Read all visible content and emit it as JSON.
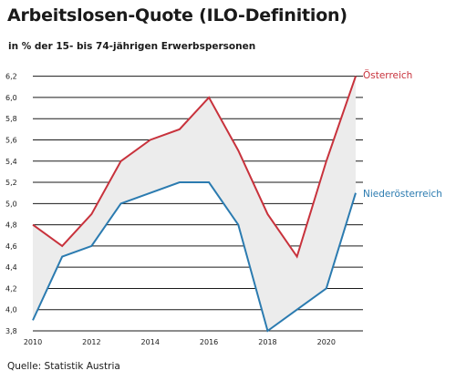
{
  "chart_data": {
    "type": "line",
    "title": "Arbeitslosen-Quote (ILO-Definition)",
    "subtitle": "in % der 15- bis 74-jährigen Erwerbspersonen",
    "source": "Quelle: Statistik Austria",
    "x": [
      2010,
      2011,
      2012,
      2013,
      2014,
      2015,
      2016,
      2017,
      2018,
      2019,
      2020,
      2021
    ],
    "series": [
      {
        "name": "Österreich",
        "color": "#c8323c",
        "values": [
          4.8,
          4.6,
          4.9,
          5.4,
          5.6,
          5.7,
          6.0,
          5.5,
          4.9,
          4.5,
          5.4,
          6.2
        ]
      },
      {
        "name": "Niederösterreich",
        "color": "#2b7bb0",
        "values": [
          3.9,
          4.5,
          4.6,
          5.0,
          5.1,
          5.2,
          5.2,
          4.8,
          3.8,
          4.0,
          4.2,
          5.1
        ]
      }
    ],
    "xticks": [
      "2010",
      "2012",
      "2014",
      "2016",
      "2018",
      "2020"
    ],
    "xtick_values": [
      2010,
      2012,
      2014,
      2016,
      2018,
      2020
    ],
    "yticks": [
      "3,8",
      "4,0",
      "4,2",
      "4,4",
      "4,6",
      "4,8",
      "5,0",
      "5,2",
      "5,4",
      "5,6",
      "5,8",
      "6,0",
      "6,2"
    ],
    "ytick_values": [
      3.8,
      4.0,
      4.2,
      4.4,
      4.6,
      4.8,
      5.0,
      5.2,
      5.4,
      5.6,
      5.8,
      6.0,
      6.2
    ],
    "xlim": [
      2010,
      2021
    ],
    "ylim": [
      3.8,
      6.3
    ],
    "grid": "horizontal",
    "band_fill": "#ececec",
    "xlabel": "",
    "ylabel": ""
  }
}
